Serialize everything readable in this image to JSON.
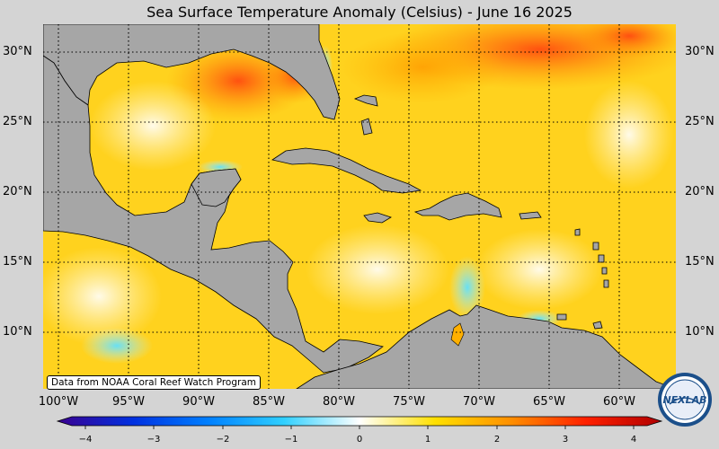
{
  "title": "Sea Surface Temperature Anomaly (Celsius) - June 16 2025",
  "lat_labels": [
    "30°N",
    "25°N",
    "20°N",
    "15°N",
    "10°N"
  ],
  "lon_labels": [
    "100°W",
    "95°W",
    "90°W",
    "85°W",
    "80°W",
    "75°W",
    "70°W",
    "65°W",
    "60°W"
  ],
  "credit": "Data from NOAA Coral Reef Watch Program",
  "logo_text": "NEXLAB",
  "colorbar": {
    "ticks": [
      "−4",
      "−3",
      "−2",
      "−1",
      "0",
      "1",
      "2",
      "3",
      "4"
    ],
    "colors": [
      "#3a0090",
      "#0030e0",
      "#0080ff",
      "#30d0ff",
      "#ffffff",
      "#ffe000",
      "#ff9000",
      "#ff2000",
      "#b00000"
    ]
  },
  "colors": {
    "land": "#a6a6a6",
    "ocean_base": "#ffd020",
    "warm": "#ff5a10",
    "cool": "#70e8ff",
    "background": "#d4d4d4"
  }
}
